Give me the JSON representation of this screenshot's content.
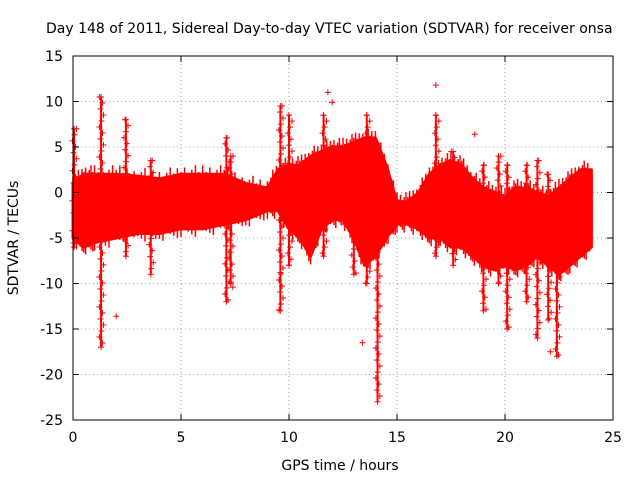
{
  "chart_data": {
    "type": "scatter",
    "title": "Day 148 of 2011, Sidereal Day-to-day VTEC variation (SDTVAR) for receiver onsa",
    "xlabel": "GPS time / hours",
    "ylabel": "SDTVAR / TECUs",
    "xlim": [
      0,
      25
    ],
    "ylim": [
      -25,
      15
    ],
    "xticks": [
      0,
      5,
      10,
      15,
      20,
      25
    ],
    "yticks": [
      15,
      10,
      5,
      0,
      -5,
      -10,
      -15,
      -20,
      -25
    ],
    "grid": true,
    "marker": "+",
    "color": "#ff0000",
    "band": {
      "x": [
        0,
        0.5,
        1,
        2,
        3,
        4,
        5,
        6,
        7,
        8,
        9,
        9.5,
        10,
        10.5,
        11,
        11.5,
        12,
        12.5,
        13,
        13.5,
        14,
        14.5,
        15,
        15.5,
        16,
        16.5,
        17,
        17.5,
        18,
        18.5,
        19,
        19.5,
        20,
        20.5,
        21,
        21.5,
        22,
        22.5,
        23,
        23.5,
        24
      ],
      "upper": [
        1,
        2,
        2,
        2,
        1.8,
        1.5,
        2,
        2,
        2,
        1,
        0.5,
        2.5,
        3,
        3,
        4,
        4.5,
        5,
        5,
        5.5,
        6,
        6,
        3,
        -1,
        -1,
        0,
        2,
        3,
        3.5,
        3,
        1.5,
        0.5,
        0,
        -0.5,
        0.5,
        0.5,
        0,
        -0.5,
        0.5,
        1.5,
        2.5,
        2.5
      ],
      "lower": [
        -5,
        -6,
        -5.5,
        -5,
        -4.5,
        -4.5,
        -4,
        -4,
        -3.5,
        -3,
        -2,
        -2,
        -4,
        -5,
        -7,
        -4,
        -3,
        -3,
        -5,
        -8,
        -7,
        -5,
        -3.5,
        -3.5,
        -4,
        -5,
        -5,
        -6,
        -6,
        -7,
        -8,
        -8.5,
        -8,
        -8.5,
        -8,
        -7,
        -8,
        -9,
        -8,
        -7,
        -6
      ]
    },
    "spikes": [
      {
        "x": 0.05,
        "y": [
          7,
          -6
        ]
      },
      {
        "x": 1.3,
        "y": [
          10.5,
          -17
        ]
      },
      {
        "x": 2.45,
        "y": [
          8,
          -7
        ]
      },
      {
        "x": 3.6,
        "y": [
          3.5,
          -9
        ]
      },
      {
        "x": 7.1,
        "y": [
          6,
          -12
        ]
      },
      {
        "x": 7.3,
        "y": [
          4,
          -10
        ]
      },
      {
        "x": 9.6,
        "y": [
          9.5,
          -13
        ]
      },
      {
        "x": 10.0,
        "y": [
          8.5,
          -8
        ]
      },
      {
        "x": 11.6,
        "y": [
          8.5,
          -7
        ]
      },
      {
        "x": 13.0,
        "y": [
          5,
          -9
        ]
      },
      {
        "x": 13.6,
        "y": [
          8.5,
          -10
        ]
      },
      {
        "x": 14.1,
        "y": [
          4,
          -23
        ]
      },
      {
        "x": 16.8,
        "y": [
          8.5,
          -7
        ]
      },
      {
        "x": 17.6,
        "y": [
          4.5,
          -8
        ]
      },
      {
        "x": 19.0,
        "y": [
          3,
          -13
        ]
      },
      {
        "x": 19.7,
        "y": [
          4,
          -10
        ]
      },
      {
        "x": 20.1,
        "y": [
          3,
          -15
        ]
      },
      {
        "x": 21.0,
        "y": [
          3,
          -12
        ]
      },
      {
        "x": 21.5,
        "y": [
          3.5,
          -16
        ]
      },
      {
        "x": 22.0,
        "y": [
          2,
          -14
        ]
      },
      {
        "x": 22.4,
        "y": [
          -4,
          -18
        ]
      }
    ],
    "outliers": [
      {
        "x": 2.0,
        "y": -13.6
      },
      {
        "x": 7.4,
        "y": -10.4
      },
      {
        "x": 11.8,
        "y": 11.0
      },
      {
        "x": 12.0,
        "y": 9.9
      },
      {
        "x": 13.4,
        "y": -16.5
      },
      {
        "x": 16.8,
        "y": 11.8
      },
      {
        "x": 18.6,
        "y": 6.4
      },
      {
        "x": 9.6,
        "y": -8.8
      },
      {
        "x": 22.1,
        "y": -17.5
      }
    ]
  }
}
